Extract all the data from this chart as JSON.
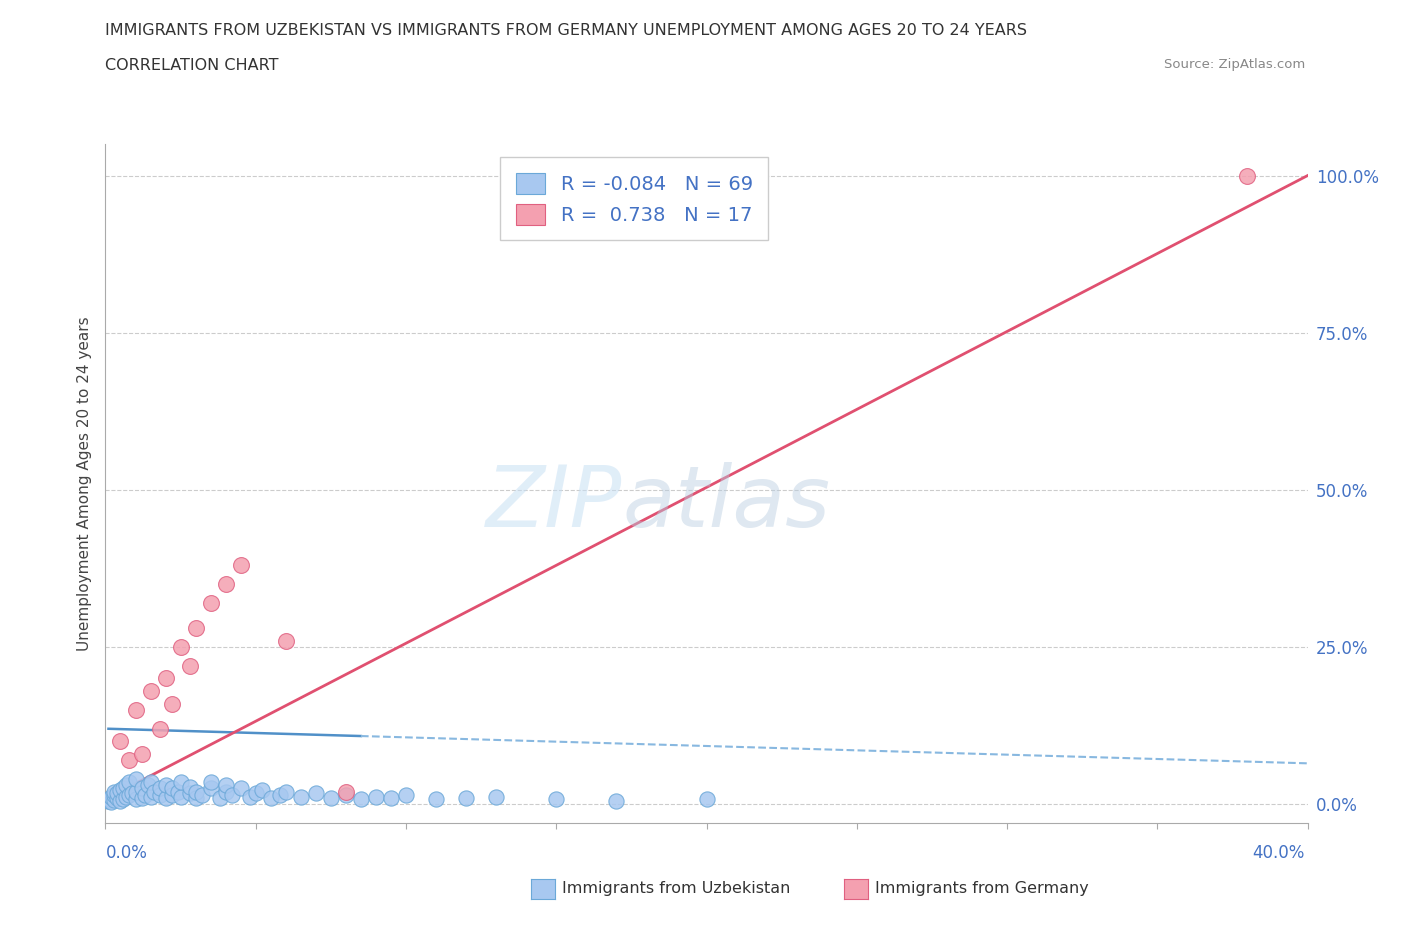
{
  "title_line1": "IMMIGRANTS FROM UZBEKISTAN VS IMMIGRANTS FROM GERMANY UNEMPLOYMENT AMONG AGES 20 TO 24 YEARS",
  "title_line2": "CORRELATION CHART",
  "source_text": "Source: ZipAtlas.com",
  "ylabel_label": "Unemployment Among Ages 20 to 24 years",
  "ytick_labels": [
    "0.0%",
    "25.0%",
    "50.0%",
    "75.0%",
    "100.0%"
  ],
  "ytick_values": [
    0.0,
    0.25,
    0.5,
    0.75,
    1.0
  ],
  "xmin": 0.0,
  "xmax": 0.4,
  "ymin": -0.03,
  "ymax": 1.05,
  "color_uzbekistan": "#a8c8f0",
  "color_germany": "#f4a0b0",
  "edge_uzbekistan": "#6ba8d8",
  "edge_germany": "#e06080",
  "trendline_uzbekistan_solid_color": "#5090c8",
  "trendline_uzbekistan_dash_color": "#88b8e0",
  "trendline_germany_color": "#e05070",
  "legend_R_uzbekistan": "-0.084",
  "legend_N_uzbekistan": "69",
  "legend_R_germany": "0.738",
  "legend_N_germany": "17",
  "scatter_uzbekistan": [
    [
      0.001,
      0.005
    ],
    [
      0.001,
      0.008
    ],
    [
      0.002,
      0.003
    ],
    [
      0.002,
      0.012
    ],
    [
      0.003,
      0.006
    ],
    [
      0.003,
      0.015
    ],
    [
      0.003,
      0.02
    ],
    [
      0.004,
      0.01
    ],
    [
      0.004,
      0.018
    ],
    [
      0.005,
      0.005
    ],
    [
      0.005,
      0.022
    ],
    [
      0.006,
      0.008
    ],
    [
      0.006,
      0.025
    ],
    [
      0.007,
      0.012
    ],
    [
      0.007,
      0.03
    ],
    [
      0.008,
      0.015
    ],
    [
      0.008,
      0.035
    ],
    [
      0.009,
      0.018
    ],
    [
      0.01,
      0.008
    ],
    [
      0.01,
      0.02
    ],
    [
      0.01,
      0.04
    ],
    [
      0.012,
      0.01
    ],
    [
      0.012,
      0.025
    ],
    [
      0.013,
      0.015
    ],
    [
      0.014,
      0.03
    ],
    [
      0.015,
      0.012
    ],
    [
      0.015,
      0.035
    ],
    [
      0.016,
      0.02
    ],
    [
      0.018,
      0.015
    ],
    [
      0.018,
      0.025
    ],
    [
      0.02,
      0.01
    ],
    [
      0.02,
      0.03
    ],
    [
      0.022,
      0.015
    ],
    [
      0.022,
      0.025
    ],
    [
      0.024,
      0.02
    ],
    [
      0.025,
      0.012
    ],
    [
      0.025,
      0.035
    ],
    [
      0.028,
      0.018
    ],
    [
      0.028,
      0.028
    ],
    [
      0.03,
      0.01
    ],
    [
      0.03,
      0.02
    ],
    [
      0.032,
      0.015
    ],
    [
      0.035,
      0.025
    ],
    [
      0.035,
      0.035
    ],
    [
      0.038,
      0.01
    ],
    [
      0.04,
      0.02
    ],
    [
      0.04,
      0.03
    ],
    [
      0.042,
      0.015
    ],
    [
      0.045,
      0.025
    ],
    [
      0.048,
      0.012
    ],
    [
      0.05,
      0.018
    ],
    [
      0.052,
      0.022
    ],
    [
      0.055,
      0.01
    ],
    [
      0.058,
      0.015
    ],
    [
      0.06,
      0.02
    ],
    [
      0.065,
      0.012
    ],
    [
      0.07,
      0.018
    ],
    [
      0.075,
      0.01
    ],
    [
      0.08,
      0.015
    ],
    [
      0.085,
      0.008
    ],
    [
      0.09,
      0.012
    ],
    [
      0.095,
      0.01
    ],
    [
      0.1,
      0.015
    ],
    [
      0.11,
      0.008
    ],
    [
      0.12,
      0.01
    ],
    [
      0.13,
      0.012
    ],
    [
      0.15,
      0.008
    ],
    [
      0.17,
      0.005
    ],
    [
      0.2,
      0.008
    ]
  ],
  "scatter_germany": [
    [
      0.005,
      0.1
    ],
    [
      0.008,
      0.07
    ],
    [
      0.01,
      0.15
    ],
    [
      0.012,
      0.08
    ],
    [
      0.015,
      0.18
    ],
    [
      0.018,
      0.12
    ],
    [
      0.02,
      0.2
    ],
    [
      0.022,
      0.16
    ],
    [
      0.025,
      0.25
    ],
    [
      0.028,
      0.22
    ],
    [
      0.03,
      0.28
    ],
    [
      0.035,
      0.32
    ],
    [
      0.04,
      0.35
    ],
    [
      0.045,
      0.38
    ],
    [
      0.06,
      0.26
    ],
    [
      0.08,
      0.02
    ],
    [
      0.38,
      1.0
    ]
  ],
  "trendline_uz_x1": 0.001,
  "trendline_uz_y1": 0.12,
  "trendline_uz_x2": 0.4,
  "trendline_uz_y2": 0.065,
  "trendline_uz_solid_end": 0.085,
  "trendline_de_x1": 0.0,
  "trendline_de_y1": 0.008,
  "trendline_de_x2": 0.4,
  "trendline_de_y2": 1.0,
  "watermark_zip": "ZIP",
  "watermark_atlas": "atlas"
}
